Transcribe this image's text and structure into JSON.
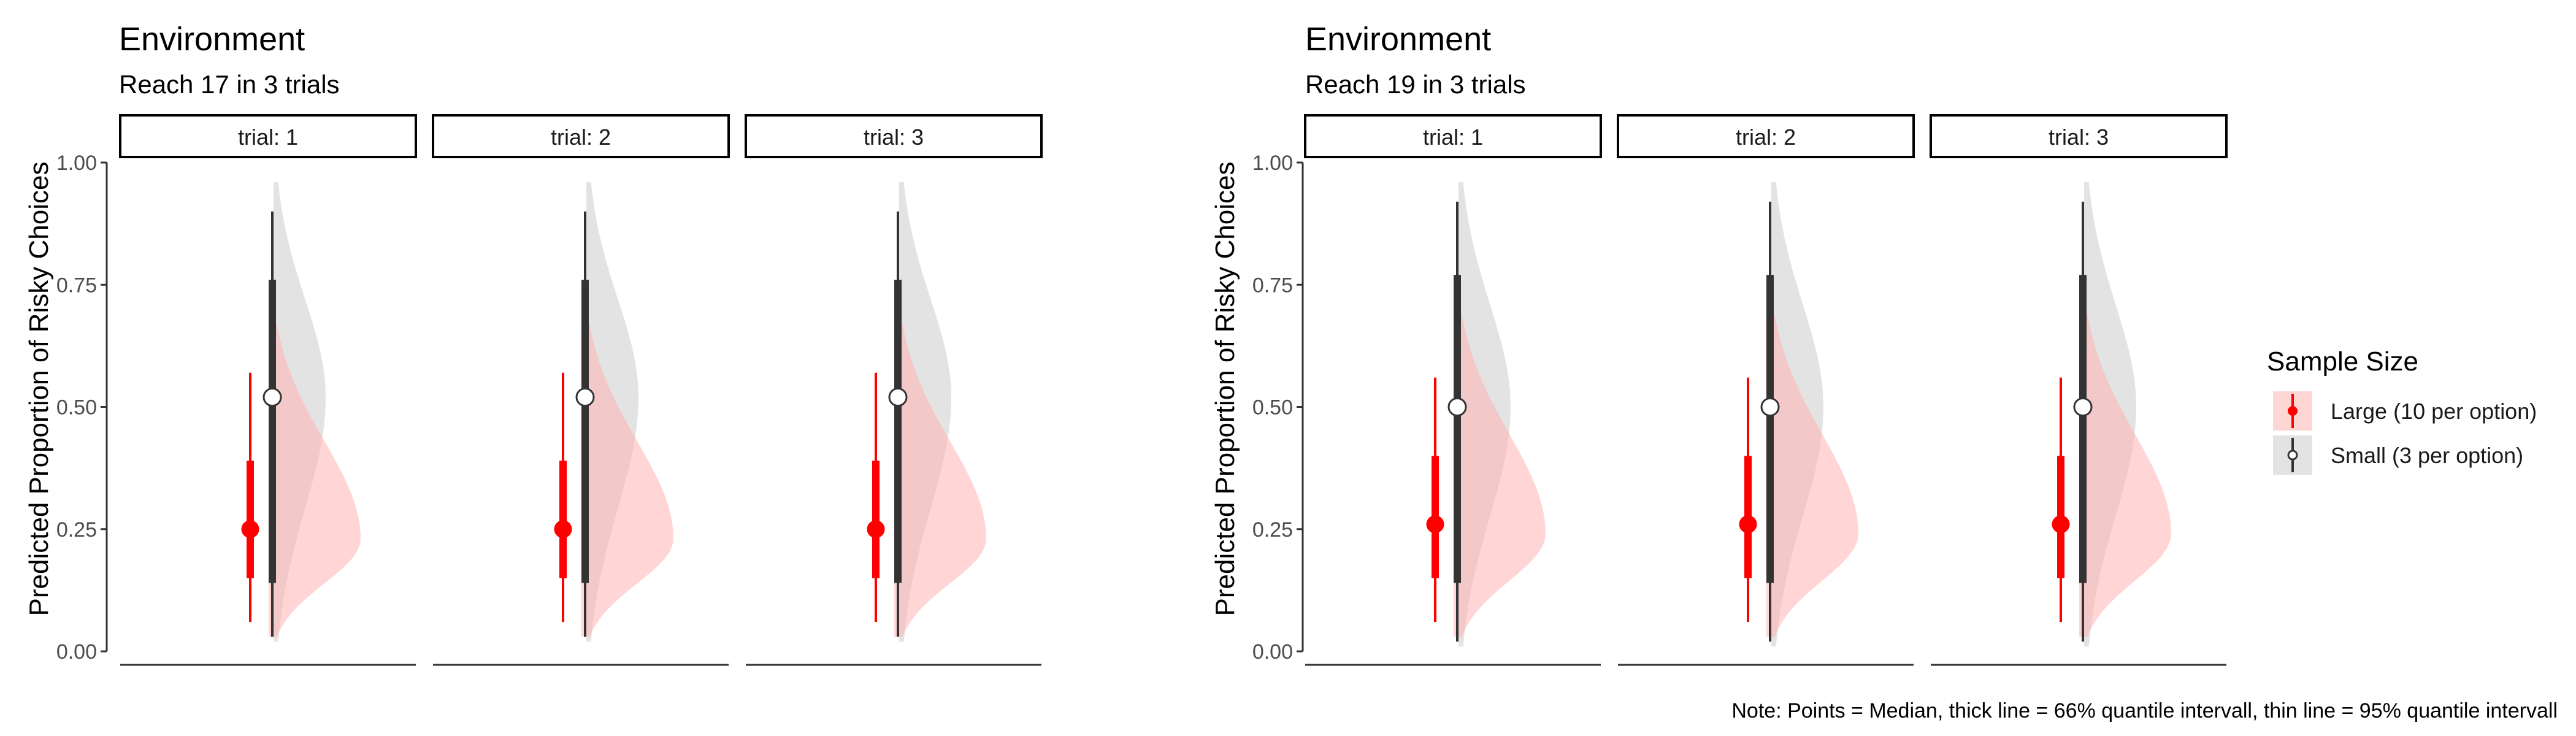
{
  "figure": {
    "type": "violin-halfeye",
    "legend": {
      "title": "Sample Size",
      "position": "right",
      "items": [
        {
          "label": "Large (10 per option)",
          "color": "#ff0000",
          "fill": "#ffb6b6",
          "point_fill": "#ff0000"
        },
        {
          "label": "Small (3 per option)",
          "color": "#333333",
          "fill": "#cccccc",
          "point_fill": "#ffffff"
        }
      ]
    },
    "note": "Note: Points = Median, thick line = 66% quantile intervall, thin line = 95% quantile intervall"
  },
  "chart_data": [
    {
      "type": "violin",
      "title": "Environment",
      "subtitle": "Reach 17 in 3 trials",
      "ylabel": "Predicted Proportion of Risky Choices",
      "xlabel": "",
      "ylim": [
        0,
        1
      ],
      "yticks": [
        "0.00",
        "0.25",
        "0.50",
        "0.75",
        "1.00"
      ],
      "grid": false,
      "facets": [
        {
          "label": "trial: 1",
          "series": [
            {
              "name": "Large (10 per option)",
              "median": 0.25,
              "q66": [
                0.15,
                0.39
              ],
              "q95": [
                0.06,
                0.57
              ],
              "density_range": [
                0.03,
                0.67
              ],
              "density_peak": 0.23
            },
            {
              "name": "Small (3 per option)",
              "median": 0.52,
              "q66": [
                0.14,
                0.76
              ],
              "q95": [
                0.03,
                0.9
              ],
              "density_range": [
                0.02,
                0.96
              ],
              "density_peak": 0.52
            }
          ]
        },
        {
          "label": "trial: 2",
          "series": [
            {
              "name": "Large (10 per option)",
              "median": 0.25,
              "q66": [
                0.15,
                0.39
              ],
              "q95": [
                0.06,
                0.57
              ],
              "density_range": [
                0.03,
                0.67
              ],
              "density_peak": 0.23
            },
            {
              "name": "Small (3 per option)",
              "median": 0.52,
              "q66": [
                0.14,
                0.76
              ],
              "q95": [
                0.03,
                0.9
              ],
              "density_range": [
                0.02,
                0.96
              ],
              "density_peak": 0.52
            }
          ]
        },
        {
          "label": "trial: 3",
          "series": [
            {
              "name": "Large (10 per option)",
              "median": 0.25,
              "q66": [
                0.15,
                0.39
              ],
              "q95": [
                0.06,
                0.57
              ],
              "density_range": [
                0.03,
                0.67
              ],
              "density_peak": 0.23
            },
            {
              "name": "Small (3 per option)",
              "median": 0.52,
              "q66": [
                0.14,
                0.76
              ],
              "q95": [
                0.03,
                0.9
              ],
              "density_range": [
                0.02,
                0.96
              ],
              "density_peak": 0.52
            }
          ]
        }
      ]
    },
    {
      "type": "violin",
      "title": "Environment",
      "subtitle": "Reach 19 in 3 trials",
      "ylabel": "Predicted Proportion of Risky Choices",
      "xlabel": "",
      "ylim": [
        0,
        1
      ],
      "yticks": [
        "0.00",
        "0.25",
        "0.50",
        "0.75",
        "1.00"
      ],
      "grid": false,
      "facets": [
        {
          "label": "trial: 1",
          "series": [
            {
              "name": "Large (10 per option)",
              "median": 0.26,
              "q66": [
                0.15,
                0.4
              ],
              "q95": [
                0.06,
                0.56
              ],
              "density_range": [
                0.03,
                0.69
              ],
              "density_peak": 0.24
            },
            {
              "name": "Small (3 per option)",
              "median": 0.5,
              "q66": [
                0.14,
                0.77
              ],
              "q95": [
                0.02,
                0.92
              ],
              "density_range": [
                0.01,
                0.96
              ],
              "density_peak": 0.5
            }
          ]
        },
        {
          "label": "trial: 2",
          "series": [
            {
              "name": "Large (10 per option)",
              "median": 0.26,
              "q66": [
                0.15,
                0.4
              ],
              "q95": [
                0.06,
                0.56
              ],
              "density_range": [
                0.03,
                0.69
              ],
              "density_peak": 0.24
            },
            {
              "name": "Small (3 per option)",
              "median": 0.5,
              "q66": [
                0.14,
                0.77
              ],
              "q95": [
                0.02,
                0.92
              ],
              "density_range": [
                0.01,
                0.96
              ],
              "density_peak": 0.5
            }
          ]
        },
        {
          "label": "trial: 3",
          "series": [
            {
              "name": "Large (10 per option)",
              "median": 0.26,
              "q66": [
                0.15,
                0.4
              ],
              "q95": [
                0.06,
                0.56
              ],
              "density_range": [
                0.03,
                0.69
              ],
              "density_peak": 0.24
            },
            {
              "name": "Small (3 per option)",
              "median": 0.5,
              "q66": [
                0.14,
                0.77
              ],
              "q95": [
                0.02,
                0.92
              ],
              "density_range": [
                0.01,
                0.96
              ],
              "density_peak": 0.5
            }
          ]
        }
      ]
    }
  ]
}
